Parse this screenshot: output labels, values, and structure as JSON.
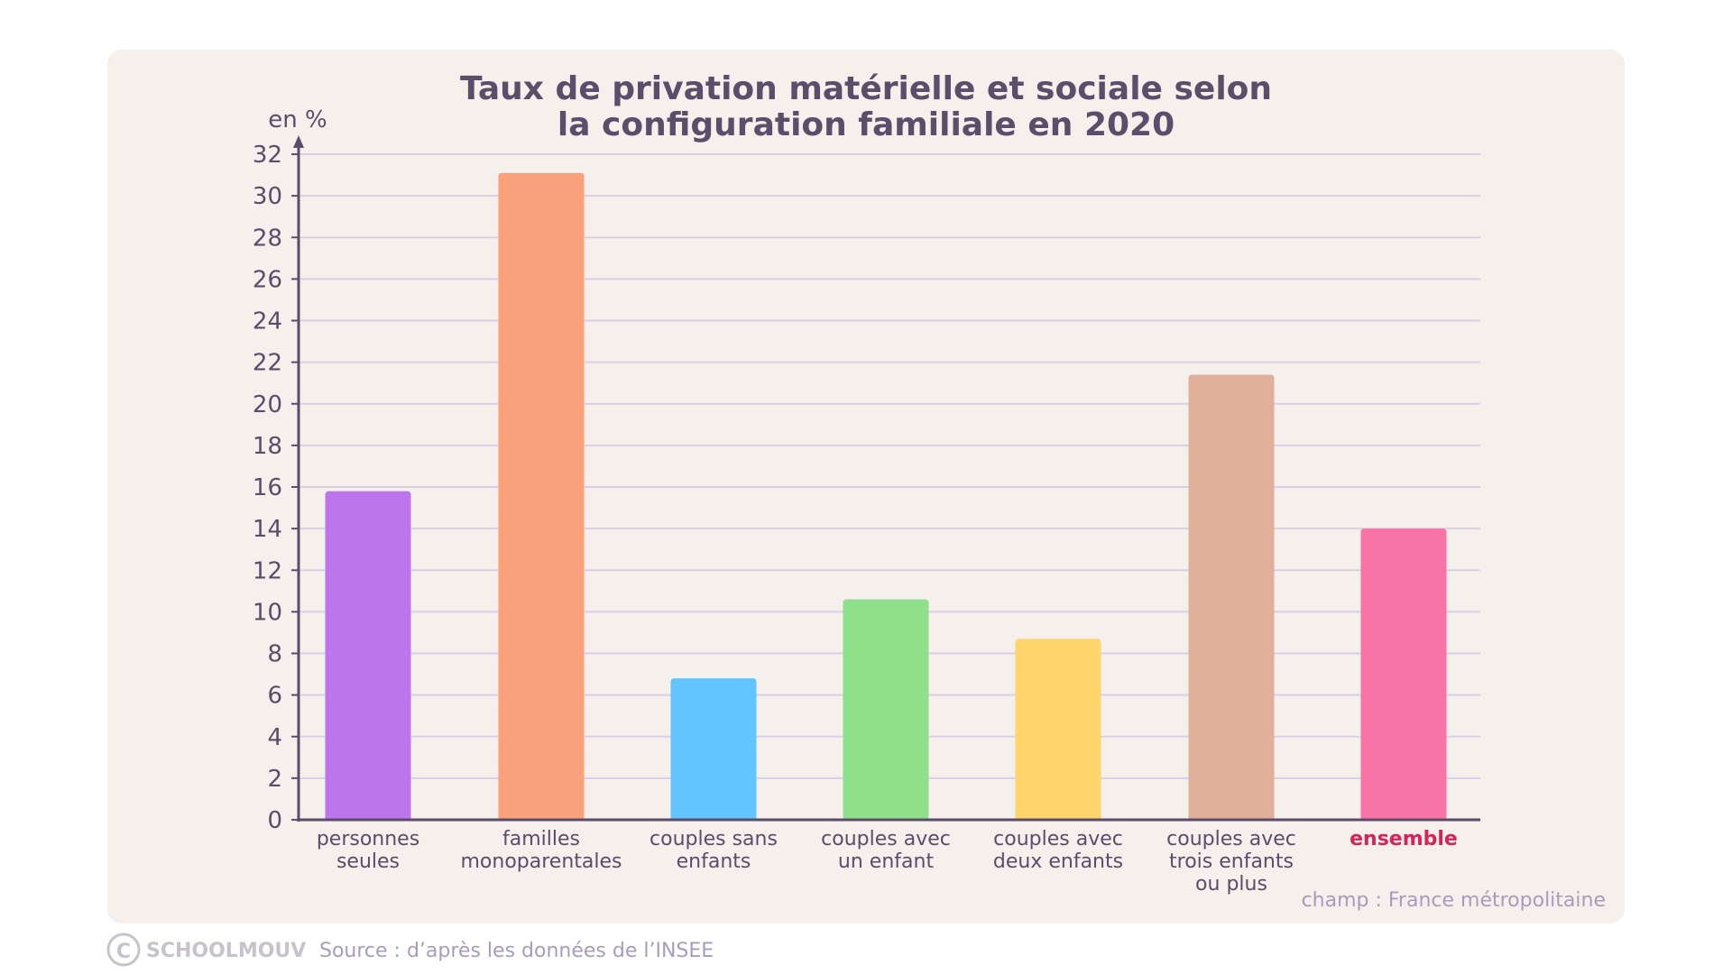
{
  "chart_data": {
    "type": "bar",
    "title": [
      "Taux de privation matérielle et sociale selon",
      "la configuration familiale en 2020"
    ],
    "ylabel": "en %",
    "xlabel": "",
    "ylim": [
      0,
      32
    ],
    "yticks": [
      0,
      2,
      4,
      6,
      8,
      10,
      12,
      14,
      16,
      18,
      20,
      22,
      24,
      26,
      28,
      30,
      32
    ],
    "grid": true,
    "categories": [
      [
        "personnes",
        "seules"
      ],
      [
        "familles",
        "monoparentales"
      ],
      [
        "couples sans",
        "enfants"
      ],
      [
        "couples avec",
        "un enfant"
      ],
      [
        "couples avec",
        "deux enfants"
      ],
      [
        "couples avec",
        "trois enfants",
        "ou plus"
      ],
      [
        "ensemble"
      ]
    ],
    "values": [
      15.8,
      31.1,
      6.8,
      10.6,
      8.7,
      21.4,
      14.0
    ],
    "colors": [
      "#bd75ee",
      "#f8a17a",
      "#63c5fd",
      "#90e08b",
      "#fdd56b",
      "#e0b09b",
      "#f873a6"
    ],
    "highlight_label_color": "#d6245b",
    "annotation": "champ : France métropolitaine"
  },
  "footer": {
    "brand": "SCHOOLMOUV",
    "source": "Source : d’après les données de l’INSEE"
  }
}
